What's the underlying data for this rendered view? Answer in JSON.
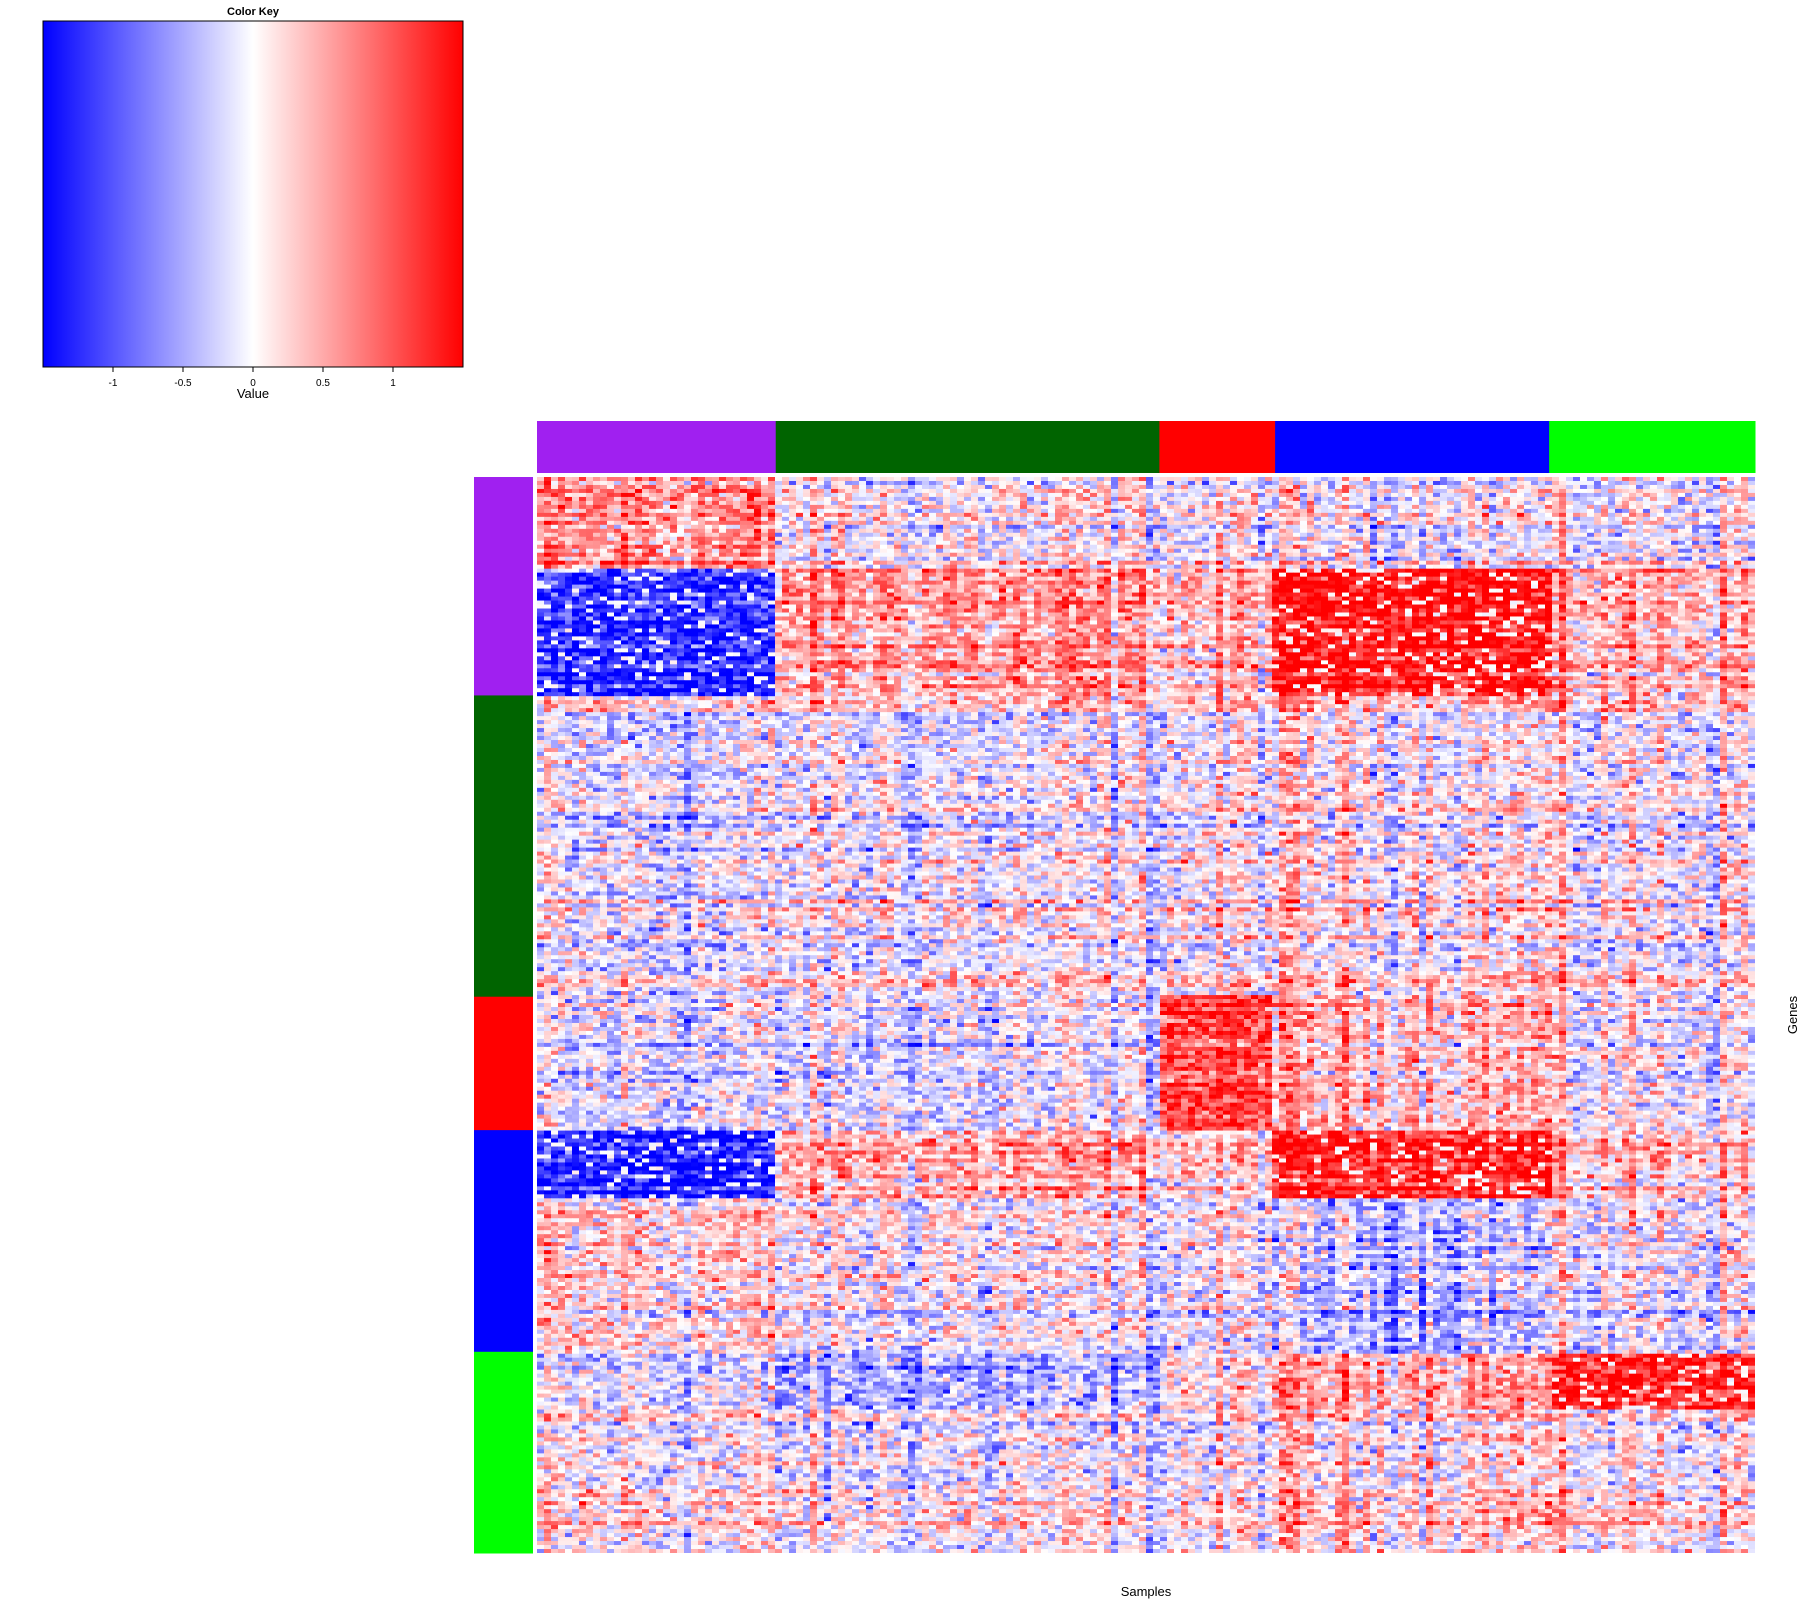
{
  "chart_data": {
    "type": "heatmap",
    "xlabel": "Samples",
    "ylabel": "Genes",
    "color_key": {
      "title": "Color Key",
      "label": "Value",
      "range": [
        -1.5,
        1.5
      ],
      "colors": {
        "low": "#0000ff",
        "mid": "#ffffff",
        "high": "#ff0000"
      },
      "ticks": [
        {
          "value": -1,
          "label": "-1"
        },
        {
          "value": -0.5,
          "label": "-0.5"
        },
        {
          "value": 0,
          "label": "0"
        },
        {
          "value": 0.5,
          "label": "0.5"
        },
        {
          "value": 1,
          "label": "1"
        }
      ]
    },
    "column_groups": [
      {
        "color": "#a020f0",
        "fraction": 0.196
      },
      {
        "color": "#006400",
        "fraction": 0.315
      },
      {
        "color": "#ff0000",
        "fraction": 0.095
      },
      {
        "color": "#0000ff",
        "fraction": 0.225
      },
      {
        "color": "#00ff00",
        "fraction": 0.169
      }
    ],
    "row_groups": [
      {
        "color": "#a020f0",
        "fraction": 0.203
      },
      {
        "color": "#006400",
        "fraction": 0.28
      },
      {
        "color": "#ff0000",
        "fraction": 0.124
      },
      {
        "color": "#0000ff",
        "fraction": 0.206
      },
      {
        "color": "#00ff00",
        "fraction": 0.187
      }
    ],
    "block_pattern": {
      "row_segments": [
        "purple-top",
        "purple-block",
        "green",
        "red",
        "blue-block",
        "blue-lower",
        "lime-top",
        "lime-lower"
      ],
      "col_segments": [
        "purple",
        "darkgreen",
        "red",
        "blue",
        "lime"
      ],
      "mean_values": [
        [
          0.6,
          0.0,
          0.0,
          0.0,
          0.0
        ],
        [
          -1.3,
          0.5,
          0.3,
          1.4,
          0.4
        ],
        [
          -0.1,
          0.0,
          0.1,
          0.2,
          0.1
        ],
        [
          -0.2,
          -0.2,
          1.1,
          0.4,
          0.0
        ],
        [
          -1.3,
          0.5,
          0.3,
          1.4,
          0.4
        ],
        [
          0.2,
          0.0,
          0.0,
          -0.3,
          0.0
        ],
        [
          -0.2,
          -0.5,
          0.2,
          0.5,
          1.3
        ],
        [
          0.1,
          0.0,
          0.1,
          0.3,
          0.2
        ]
      ]
    }
  }
}
